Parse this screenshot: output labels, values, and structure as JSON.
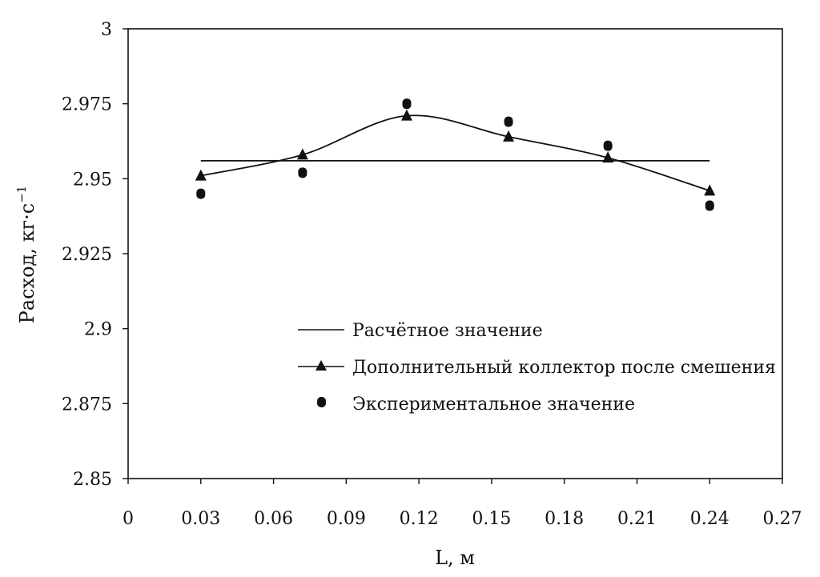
{
  "chart_data": {
    "type": "line",
    "title": "",
    "xlabel": "L, м",
    "ylabel_main": "Расход, кг·с",
    "ylabel_sup": "−1",
    "xlim": [
      0,
      0.27
    ],
    "ylim": [
      2.85,
      3.0
    ],
    "xticks": [
      0,
      0.03,
      0.06,
      0.09,
      0.12,
      0.15,
      0.18,
      0.21,
      0.24,
      0.27
    ],
    "xtick_labels": [
      "0",
      "0.03",
      "0.06",
      "0.09",
      "0.12",
      "0.15",
      "0.18",
      "0.21",
      "0.24",
      "0.27"
    ],
    "yticks": [
      2.85,
      2.875,
      2.9,
      2.925,
      2.95,
      2.975,
      3.0
    ],
    "ytick_labels": [
      "2.85",
      "2.875",
      "2.9",
      "2.925",
      "2.95",
      "2.975",
      "3"
    ],
    "grid": false,
    "legend_position": "lower-right",
    "series": [
      {
        "name": "Расчётное значение",
        "style": "line",
        "x": [
          0.03,
          0.24
        ],
        "y": [
          2.956,
          2.956
        ]
      },
      {
        "name": "Дополнительный коллектор после смешения",
        "style": "line-triangle",
        "x": [
          0.03,
          0.072,
          0.115,
          0.157,
          0.198,
          0.24
        ],
        "y": [
          2.951,
          2.958,
          2.971,
          2.964,
          2.957,
          2.946
        ]
      },
      {
        "name": "Экспериментальное значение",
        "style": "marker-circle",
        "x": [
          0.03,
          0.072,
          0.115,
          0.157,
          0.198,
          0.24
        ],
        "y": [
          2.945,
          2.952,
          2.975,
          2.969,
          2.961,
          2.941
        ]
      }
    ],
    "colors": {
      "line": "#111111",
      "marker": "#111111",
      "frame": "#111111"
    }
  }
}
